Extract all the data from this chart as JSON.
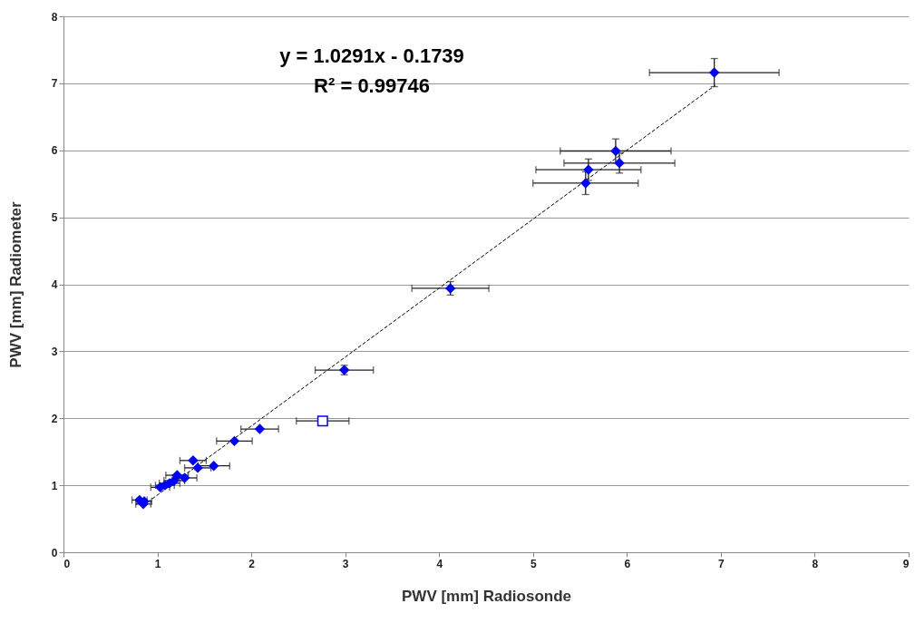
{
  "chart_data": {
    "type": "scatter",
    "xlabel": "PWV [mm] Radiosonde",
    "ylabel": "PWV [mm] Radiometer",
    "annotations": [
      "y = 1.0291x - 0.1739",
      "R² = 0.99746"
    ],
    "xlim": [
      0,
      9
    ],
    "xticks": [
      0,
      1,
      2,
      3,
      4,
      5,
      6,
      7,
      8,
      9
    ],
    "ylim": [
      0,
      8
    ],
    "yticks": [
      0,
      1,
      2,
      3,
      4,
      5,
      6,
      7,
      8
    ],
    "grid": "y",
    "marker": "diamond",
    "series": [
      {
        "color": "#0000ff",
        "x": [
          6.93,
          5.88,
          5.92,
          5.59,
          5.56,
          4.12,
          2.99,
          2.09,
          1.82,
          1.6,
          1.38,
          1.43,
          1.21,
          1.29,
          1.03,
          1.08,
          1.13,
          1.18,
          0.81,
          0.86,
          0.85
        ],
        "values": [
          7.16,
          5.99,
          5.81,
          5.71,
          5.51,
          3.94,
          2.72,
          1.84,
          1.66,
          1.29,
          1.37,
          1.26,
          1.15,
          1.11,
          0.97,
          1.0,
          1.03,
          1.07,
          0.78,
          0.76,
          0.72
        ],
        "xerrors": [
          0.69,
          0.59,
          0.59,
          0.56,
          0.56,
          0.41,
          0.31,
          0.2,
          0.19,
          0.17,
          0.14,
          0.14,
          0.12,
          0.13,
          0.1,
          0.1,
          0.11,
          0.11,
          0.08,
          0.08,
          0.08
        ],
        "errors": [
          0.21,
          0.18,
          0.15,
          0.16,
          0.17,
          0.1,
          0.07,
          null,
          null,
          null,
          null,
          null,
          null,
          null,
          null,
          null,
          null,
          null,
          null,
          null,
          null
        ]
      },
      {
        "color": "#0000ff",
        "marker": "square",
        "x": [
          2.76
        ],
        "values": [
          1.96
        ],
        "xerrors": [
          0.28
        ]
      },
      {
        "type": "line",
        "color": "#000000",
        "marker": "none",
        "line_style": "dashed",
        "x": [
          0.85,
          6.94
        ],
        "values": [
          0.7,
          6.97
        ]
      }
    ]
  }
}
